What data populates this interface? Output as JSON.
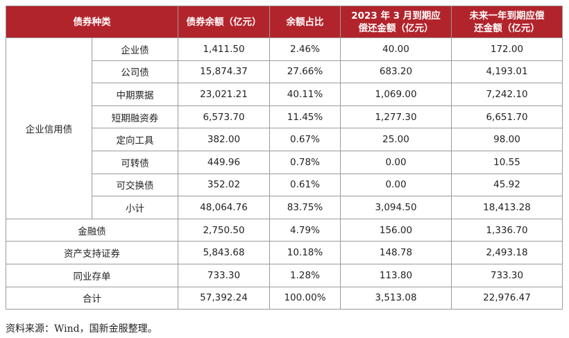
{
  "headers": {
    "type": "债券种类",
    "balance": "债券余额（亿元）",
    "ratio": "余额占比",
    "due2023_line1": "2023 年 3 月到期应",
    "due2023_line2": "偿还金额（亿元）",
    "dueYear_line1": "未来一年到期应偿",
    "dueYear_line2": "还金额（亿元）"
  },
  "group_label": "企业信用债",
  "group_rows": [
    {
      "name": "企业债",
      "balance": "1,411.50",
      "ratio": "2.46%",
      "due2023": "40.00",
      "dueYear": "172.00"
    },
    {
      "name": "公司债",
      "balance": "15,874.37",
      "ratio": "27.66%",
      "due2023": "683.20",
      "dueYear": "4,193.01"
    },
    {
      "name": "中期票据",
      "balance": "23,021.21",
      "ratio": "40.11%",
      "due2023": "1,069.00",
      "dueYear": "7,242.10"
    },
    {
      "name": "短期融资券",
      "balance": "6,573.70",
      "ratio": "11.45%",
      "due2023": "1,277.30",
      "dueYear": "6,651.70"
    },
    {
      "name": "定向工具",
      "balance": "382.00",
      "ratio": "0.67%",
      "due2023": "25.00",
      "dueYear": "98.00"
    },
    {
      "name": "可转债",
      "balance": "449.96",
      "ratio": "0.78%",
      "due2023": "0.00",
      "dueYear": "10.55"
    },
    {
      "name": "可交换债",
      "balance": "352.02",
      "ratio": "0.61%",
      "due2023": "0.00",
      "dueYear": "45.92"
    },
    {
      "name": "小计",
      "balance": "48,064.76",
      "ratio": "83.75%",
      "due2023": "3,094.50",
      "dueYear": "18,413.28"
    }
  ],
  "other_rows": [
    {
      "name": "金融债",
      "balance": "2,750.50",
      "ratio": "4.79%",
      "due2023": "156.00",
      "dueYear": "1,336.70"
    },
    {
      "name": "资产支持证券",
      "balance": "5,843.68",
      "ratio": "10.18%",
      "due2023": "148.78",
      "dueYear": "2,493.18"
    },
    {
      "name": "同业存单",
      "balance": "733.30",
      "ratio": "1.28%",
      "due2023": "113.80",
      "dueYear": "733.30"
    },
    {
      "name": "合计",
      "balance": "57,392.24",
      "ratio": "100.00%",
      "due2023": "3,513.08",
      "dueYear": "22,976.47"
    }
  ],
  "source": "资料来源：Wind，国新金服整理。"
}
